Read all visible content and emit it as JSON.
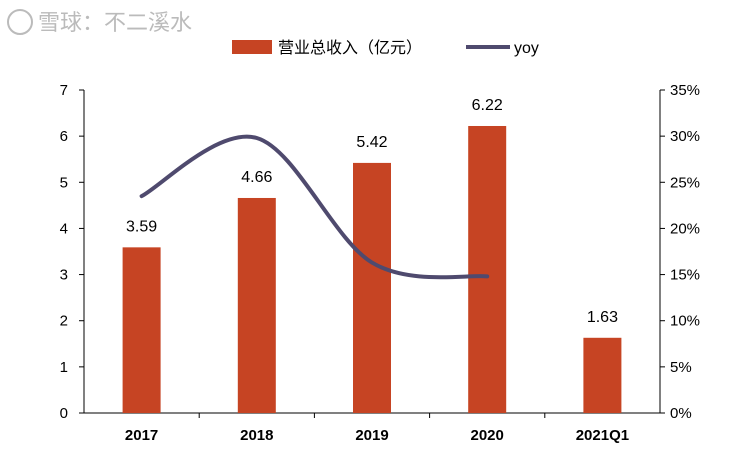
{
  "chart_data": {
    "type": "bar",
    "title": "",
    "categories": [
      "2017",
      "2018",
      "2019",
      "2020",
      "2021Q1"
    ],
    "series": [
      {
        "name": "营业总收入（亿元）",
        "type": "bar",
        "axis": "left",
        "color": "#C64423",
        "values": [
          3.59,
          4.66,
          5.42,
          6.22,
          1.63
        ],
        "data_labels": [
          "3.59",
          "4.66",
          "5.42",
          "6.22",
          "1.63"
        ]
      },
      {
        "name": "yoy",
        "type": "line",
        "axis": "right",
        "smooth": true,
        "color": "#4F4A6E",
        "values": [
          0.235,
          0.298,
          0.163,
          0.148,
          null
        ]
      }
    ],
    "y_left": {
      "range": [
        0,
        7
      ],
      "ticks": [
        "0",
        "1",
        "2",
        "3",
        "4",
        "5",
        "6",
        "7"
      ]
    },
    "y_right": {
      "range": [
        0,
        0.35
      ],
      "ticks": [
        "0%",
        "5%",
        "10%",
        "15%",
        "20%",
        "25%",
        "30%",
        "35%"
      ]
    },
    "grid": false,
    "legend_placement": "top"
  },
  "watermark": "雪球：不二溪水"
}
